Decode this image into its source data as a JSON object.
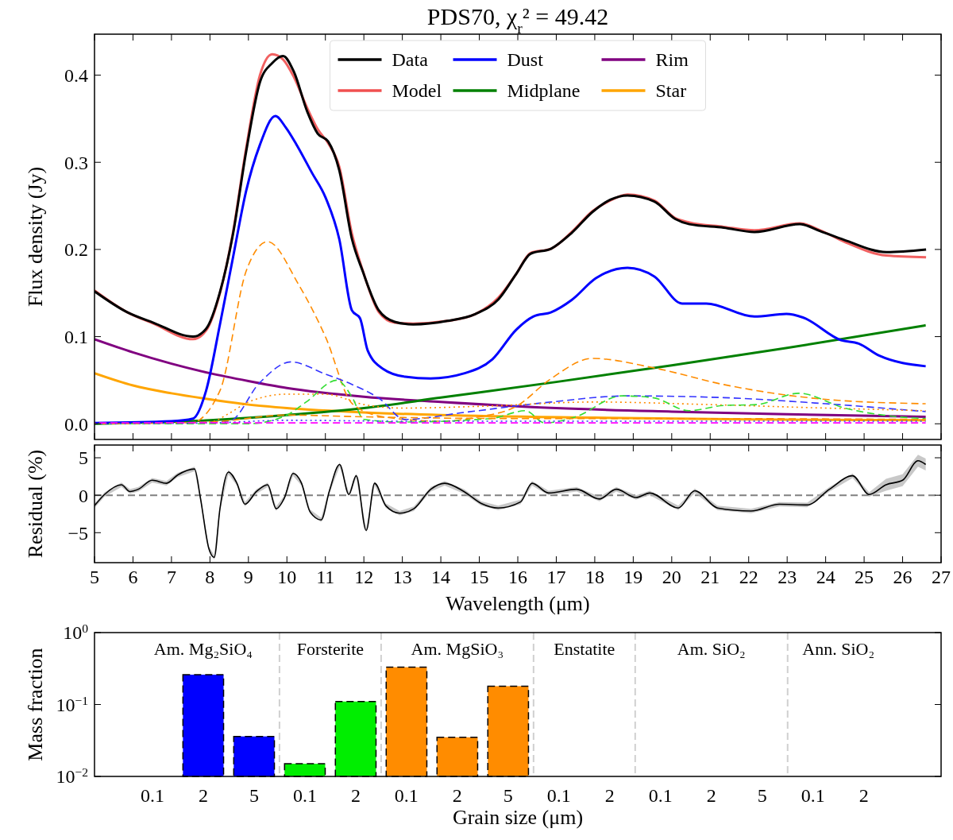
{
  "chart_data": [
    {
      "type": "line",
      "title": "PDS70, χ$_{r}$² = 49.42",
      "ylabel": "Flux density (Jy)",
      "xlim": [
        5,
        27
      ],
      "ylim": [
        -0.018,
        0.447
      ],
      "xticks": [
        5,
        6,
        7,
        8,
        9,
        10,
        11,
        12,
        13,
        14,
        15,
        16,
        17,
        18,
        19,
        20,
        21,
        22,
        23,
        24,
        25,
        26,
        27
      ],
      "yticks": [
        {
          "value": 0,
          "label": "0.0"
        },
        0.1,
        0.2,
        0.3,
        0.4
      ],
      "tick_labels": "y",
      "legend": "top",
      "line_style": "solid",
      "series": [
        {
          "name": "Data",
          "color": "#000000",
          "x": [
            5,
            5.85,
            6.53,
            7.56,
            7.9,
            8.26,
            8.6,
            8.94,
            9.3,
            9.62,
            9.9,
            10.18,
            10.53,
            10.8,
            11.07,
            11.36,
            11.69,
            11.97,
            12.39,
            12.8,
            13.28,
            14.17,
            14.9,
            15.5,
            15.96,
            16.33,
            16.87,
            17.4,
            17.94,
            18.4,
            18.85,
            19.55,
            20.09,
            20.46,
            21.35,
            22.15,
            23.33,
            23.86,
            24.48,
            25.58,
            26.61
          ],
          "values": [
            0.152,
            0.128,
            0.116,
            0.1,
            0.109,
            0.151,
            0.218,
            0.312,
            0.392,
            0.414,
            0.422,
            0.404,
            0.358,
            0.333,
            0.324,
            0.291,
            0.212,
            0.175,
            0.13,
            0.117,
            0.114,
            0.118,
            0.126,
            0.143,
            0.172,
            0.195,
            0.201,
            0.219,
            0.243,
            0.257,
            0.262,
            0.255,
            0.235,
            0.229,
            0.225,
            0.22,
            0.229,
            0.221,
            0.211,
            0.197,
            0.2
          ]
        },
        {
          "name": "Model",
          "color": "#f05050",
          "x": [
            5,
            5.85,
            6.53,
            7.56,
            7.9,
            8.26,
            8.6,
            8.94,
            9.3,
            9.62,
            9.9,
            10.18,
            10.53,
            10.8,
            11.07,
            11.36,
            11.69,
            11.97,
            12.39,
            12.8,
            13.28,
            14.17,
            14.9,
            15.5,
            15.96,
            16.33,
            16.87,
            17.4,
            17.94,
            18.4,
            18.85,
            19.55,
            20.09,
            20.46,
            21.35,
            22.15,
            23.33,
            23.86,
            24.48,
            25.58,
            26.61
          ],
          "values": [
            0.153,
            0.128,
            0.115,
            0.097,
            0.107,
            0.15,
            0.22,
            0.316,
            0.4,
            0.424,
            0.418,
            0.398,
            0.362,
            0.338,
            0.322,
            0.295,
            0.218,
            0.176,
            0.128,
            0.116,
            0.115,
            0.118,
            0.126,
            0.145,
            0.172,
            0.196,
            0.201,
            0.22,
            0.244,
            0.256,
            0.263,
            0.256,
            0.236,
            0.231,
            0.226,
            0.222,
            0.23,
            0.222,
            0.209,
            0.193,
            0.191
          ]
        },
        {
          "name": "Dust",
          "color": "#0000ff",
          "x": [
            5,
            7,
            7.56,
            7.9,
            8.26,
            8.6,
            8.94,
            9.29,
            9.7,
            9.97,
            10.24,
            10.65,
            11.0,
            11.36,
            11.69,
            11.9,
            12.1,
            12.5,
            13.07,
            13.73,
            14.62,
            15.34,
            15.96,
            16.4,
            16.87,
            17.4,
            18.03,
            18.85,
            19.55,
            20.27,
            20.9,
            22.15,
            22.98,
            23.41,
            24.4,
            24.86,
            25.4,
            26.6
          ],
          "values": [
            0.001,
            0.003,
            0.006,
            0.038,
            0.114,
            0.191,
            0.267,
            0.319,
            0.353,
            0.34,
            0.321,
            0.288,
            0.26,
            0.212,
            0.13,
            0.121,
            0.084,
            0.063,
            0.054,
            0.052,
            0.058,
            0.074,
            0.108,
            0.123,
            0.128,
            0.142,
            0.167,
            0.179,
            0.169,
            0.138,
            0.138,
            0.123,
            0.126,
            0.122,
            0.096,
            0.092,
            0.078,
            0.066
          ]
        },
        {
          "name": "Midplane",
          "color": "#008000",
          "x": [
            5,
            8,
            10,
            12,
            14,
            17,
            20,
            23,
            26.6
          ],
          "values": [
            0.0,
            0.004,
            0.01,
            0.018,
            0.03,
            0.048,
            0.067,
            0.087,
            0.113
          ]
        },
        {
          "name": "Rim",
          "color": "#800080",
          "x": [
            5,
            6,
            7,
            8,
            9,
            10,
            12,
            14,
            17,
            20,
            23,
            26.6
          ],
          "values": [
            0.097,
            0.082,
            0.069,
            0.058,
            0.049,
            0.041,
            0.031,
            0.025,
            0.018,
            0.014,
            0.011,
            0.008
          ]
        },
        {
          "name": "Star",
          "color": "#ffa500",
          "x": [
            5,
            6,
            7,
            8,
            9,
            10,
            12,
            14,
            18,
            22,
            26.6
          ],
          "values": [
            0.058,
            0.044,
            0.035,
            0.028,
            0.022,
            0.018,
            0.013,
            0.01,
            0.007,
            0.005,
            0.004
          ]
        },
        {
          "color": "#ff8c00",
          "line_style": "dashed",
          "x": [
            5,
            7.5,
            8.26,
            8.94,
            9.5,
            10.3,
            11.0,
            11.7,
            12.5,
            14,
            15,
            15.96,
            16.87,
            17.94,
            19.55,
            21.35,
            24,
            26.6
          ],
          "values": [
            0,
            0.001,
            0.038,
            0.175,
            0.209,
            0.16,
            0.1,
            0.023,
            0.008,
            0.003,
            0.008,
            0.02,
            0.052,
            0.075,
            0.064,
            0.045,
            0.028,
            0.023
          ]
        },
        {
          "color": "#3333ff",
          "line_style": "dashed",
          "x": [
            5,
            8.5,
            9.29,
            10.1,
            11,
            11.7,
            12.4,
            13.07,
            14.6,
            16.87,
            18.85,
            21.35,
            24,
            26.6
          ],
          "values": [
            0,
            0.003,
            0.047,
            0.071,
            0.057,
            0.045,
            0.029,
            0.005,
            0.013,
            0.025,
            0.032,
            0.03,
            0.023,
            0.014
          ]
        },
        {
          "color": "#ff8c00",
          "line_style": "dotted",
          "x": [
            5,
            8,
            8.5,
            9,
            10,
            11,
            12,
            13,
            15,
            18,
            21,
            24,
            26.6
          ],
          "values": [
            0,
            0.002,
            0.012,
            0.025,
            0.034,
            0.034,
            0.022,
            0.018,
            0.02,
            0.025,
            0.022,
            0.018,
            0.015
          ]
        },
        {
          "color": "#33dd33",
          "line_style": "dashed",
          "x": [
            5,
            9,
            10,
            10.5,
            11.3,
            11.7,
            12,
            13,
            15.3,
            16.2,
            16.7,
            17.5,
            18.7,
            19.5,
            20.45,
            21.35,
            22.2,
            23.3,
            24.5,
            25.9,
            26.6
          ],
          "values": [
            0,
            0,
            0.01,
            0.025,
            0.05,
            0.03,
            0.005,
            0.002,
            0.006,
            0.015,
            0.001,
            0.008,
            0.032,
            0.03,
            0.015,
            0.021,
            0.022,
            0.035,
            0.018,
            0.008,
            0.006
          ]
        },
        {
          "color": "#ff8c00",
          "line_style": "dashed",
          "x": [
            5,
            8,
            10,
            12,
            16,
            20,
            26.6
          ],
          "values": [
            0,
            0.002,
            0.01,
            0.008,
            0.006,
            0.006,
            0.005
          ]
        },
        {
          "color": "#3333ff",
          "line_style": "dotted",
          "x": [
            5,
            8,
            10,
            13,
            18,
            26.6
          ],
          "values": [
            0,
            0.001,
            0.004,
            0.003,
            0.003,
            0.003
          ]
        },
        {
          "color": "#ff00ff",
          "line_style": "dashed",
          "x": [
            5,
            26.6
          ],
          "values": [
            0.001,
            0.001
          ]
        }
      ]
    },
    {
      "type": "line",
      "xlabel": "Wavelength (μm)",
      "ylabel": "Residual (%)",
      "xlim": [
        5,
        27
      ],
      "ylim": [
        -9,
        6.7
      ],
      "xticks": [
        5,
        6,
        7,
        8,
        9,
        10,
        11,
        12,
        13,
        14,
        15,
        16,
        17,
        18,
        19,
        20,
        21,
        22,
        23,
        24,
        25,
        26,
        27
      ],
      "yticks": [
        {
          "value": -5,
          "label": "−5"
        },
        0,
        5
      ],
      "ref_lines": [
        {
          "axis": "y",
          "value": 0,
          "color": "#808080",
          "line_style": "dashed"
        }
      ],
      "series": [
        {
          "color": "#000000",
          "x": [
            5.0,
            5.26,
            5.7,
            5.92,
            6.14,
            6.5,
            6.87,
            7.16,
            7.6,
            7.75,
            7.97,
            8.11,
            8.26,
            8.48,
            8.7,
            8.91,
            9.21,
            9.5,
            9.72,
            9.94,
            10.16,
            10.38,
            10.6,
            10.89,
            11.1,
            11.37,
            11.61,
            11.8,
            12.06,
            12.28,
            12.57,
            12.93,
            13.3,
            13.74,
            14.1,
            14.6,
            15.05,
            15.49,
            16.07,
            16.37,
            16.8,
            17.53,
            18.12,
            18.56,
            19.07,
            19.43,
            20.17,
            20.6,
            21.19,
            22.06,
            22.8,
            23.52,
            24.1,
            24.7,
            25.13,
            25.57,
            26.0,
            26.4,
            26.6
          ],
          "values": [
            -1.4,
            0.1,
            1.4,
            0.5,
            0.8,
            2.0,
            1.6,
            2.7,
            3.5,
            -0.3,
            -7.1,
            -8.3,
            -1.8,
            3.1,
            1.6,
            -1.2,
            0.5,
            1.4,
            -1.8,
            -0.3,
            2.9,
            1.6,
            -2.2,
            -3.3,
            0.5,
            4.1,
            0.1,
            2.6,
            -4.7,
            1.6,
            -1.4,
            -2.4,
            -1.8,
            0.8,
            1.6,
            0.5,
            -1.1,
            -1.7,
            -0.9,
            1.6,
            0.3,
            0.8,
            -0.5,
            0.8,
            -0.3,
            0.3,
            -1.7,
            0.6,
            -1.7,
            -2.1,
            -1.2,
            -1.3,
            0.8,
            2.6,
            0.1,
            1.4,
            2.0,
            4.6,
            4.1
          ],
          "lower": [
            -1.7,
            -0.2,
            1.1,
            0.2,
            0.5,
            1.7,
            1.3,
            2.4,
            3.2,
            -0.6,
            -7.4,
            -8.6,
            -2.1,
            2.8,
            1.3,
            -1.5,
            0.2,
            1.1,
            -2.1,
            -0.6,
            2.6,
            1.3,
            -2.5,
            -3.6,
            0.2,
            3.8,
            -0.2,
            2.3,
            -5.0,
            1.3,
            -1.7,
            -2.7,
            -2.1,
            0.5,
            1.3,
            0.2,
            -1.4,
            -2.0,
            -1.2,
            1.3,
            0.0,
            0.5,
            -0.8,
            0.5,
            -0.6,
            0.0,
            -2.0,
            0.3,
            -2.0,
            -2.4,
            -1.5,
            -1.6,
            0.5,
            2.3,
            -0.2,
            0.6,
            1.2,
            3.8,
            3.3
          ],
          "upper": [
            -1.1,
            0.4,
            1.7,
            0.8,
            1.1,
            2.3,
            1.9,
            3.0,
            3.8,
            0.0,
            -6.8,
            -8.0,
            -1.5,
            3.4,
            1.9,
            -0.9,
            0.8,
            1.7,
            -1.5,
            0.0,
            3.2,
            1.9,
            -1.9,
            -3.0,
            0.8,
            4.4,
            0.4,
            2.9,
            -4.4,
            1.9,
            -1.1,
            -2.1,
            -1.5,
            1.1,
            1.9,
            0.8,
            -0.8,
            -1.4,
            -0.6,
            1.9,
            0.6,
            1.1,
            -0.2,
            1.1,
            0.0,
            0.6,
            -1.4,
            0.9,
            -1.4,
            -1.8,
            -0.9,
            -1.0,
            1.1,
            2.9,
            0.4,
            2.2,
            2.8,
            5.4,
            4.9
          ]
        }
      ]
    },
    {
      "type": "bar",
      "xlabel": "Grain size (μm)",
      "ylabel": "Mass fraction",
      "log": true,
      "ylim": [
        0.01,
        1
      ],
      "yticks": [
        {
          "value": 0.01,
          "label": "10$^{−2}$"
        },
        {
          "value": 0.1,
          "label": "10$^{−1}$"
        },
        {
          "value": 1,
          "label": "10$^{0}$"
        }
      ],
      "line_style": "dashed",
      "categories": [
        "0.1",
        "2",
        "5",
        "0.1",
        "2",
        "0.1",
        "2",
        "5",
        "0.1",
        "2",
        "0.1",
        "2",
        "5",
        "0.1",
        "2"
      ],
      "values": [
        null,
        0.26,
        0.036,
        0.015,
        0.11,
        0.33,
        0.035,
        0.18,
        null,
        null,
        null,
        null,
        null,
        null,
        null
      ],
      "colors": [
        null,
        "#0000ff",
        "#0000ff",
        "#00ee00",
        "#00ee00",
        "#ff8c00",
        "#ff8c00",
        "#ff8c00",
        null,
        null,
        null,
        null,
        null,
        null,
        null
      ],
      "annotations": [
        "Am. Mg₂SiO₄",
        "Forsterite",
        "Am. MgSiO₃",
        "Enstatite",
        "Am. SiO₂",
        "Ann. SiO₂"
      ]
    }
  ]
}
